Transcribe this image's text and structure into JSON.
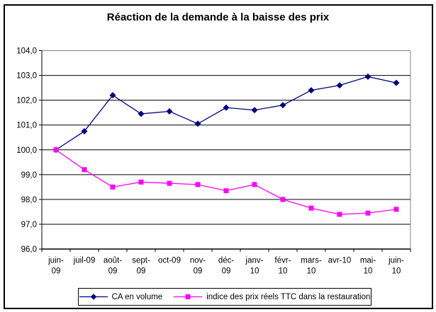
{
  "chart_data": {
    "type": "line",
    "title": "Réaction de la demande à la baisse des prix",
    "categories": [
      "juin-09",
      "juil-09",
      "août-09",
      "sept-09",
      "oct-09",
      "nov-09",
      "déc-09",
      "janv-10",
      "févr-10",
      "mars-10",
      "avr-10",
      "mai-10",
      "juin-10"
    ],
    "x_tick_display": [
      [
        "juin-",
        "09"
      ],
      [
        "juil-09"
      ],
      [
        "août-",
        "09"
      ],
      [
        "sept-",
        "09"
      ],
      [
        "oct-09"
      ],
      [
        "nov-",
        "09"
      ],
      [
        "déc-",
        "09"
      ],
      [
        "janv-",
        "10"
      ],
      [
        "févr-",
        "10"
      ],
      [
        "mars-",
        "10"
      ],
      [
        "avr-10"
      ],
      [
        "mai-",
        "10"
      ],
      [
        "juin-",
        "10"
      ]
    ],
    "series": [
      {
        "name": "CA en volume",
        "color": "#000080",
        "marker": "diamond",
        "values": [
          100.0,
          100.75,
          102.2,
          101.45,
          101.55,
          101.05,
          101.7,
          101.6,
          101.8,
          102.4,
          102.6,
          102.95,
          102.7
        ]
      },
      {
        "name": "indice des prix réels TTC dans la restauration",
        "color": "#FF00FF",
        "marker": "square",
        "values": [
          100.0,
          99.2,
          98.5,
          98.7,
          98.65,
          98.6,
          98.35,
          98.6,
          98.0,
          97.65,
          97.4,
          97.45,
          97.6
        ]
      }
    ],
    "ylim": [
      96,
      104
    ],
    "ytick_step": 1,
    "ytick_labels": [
      "96,0",
      "97,0",
      "98,0",
      "99,0",
      "100,0",
      "101,0",
      "102,0",
      "103,0",
      "104,0"
    ],
    "xlabel": "",
    "ylabel": "",
    "grid": true,
    "legend_position": "bottom",
    "gridline_color": "#000000",
    "plot_border_color": "#808080",
    "axis_color": "#000000",
    "background_color": "#FFFFFF"
  }
}
